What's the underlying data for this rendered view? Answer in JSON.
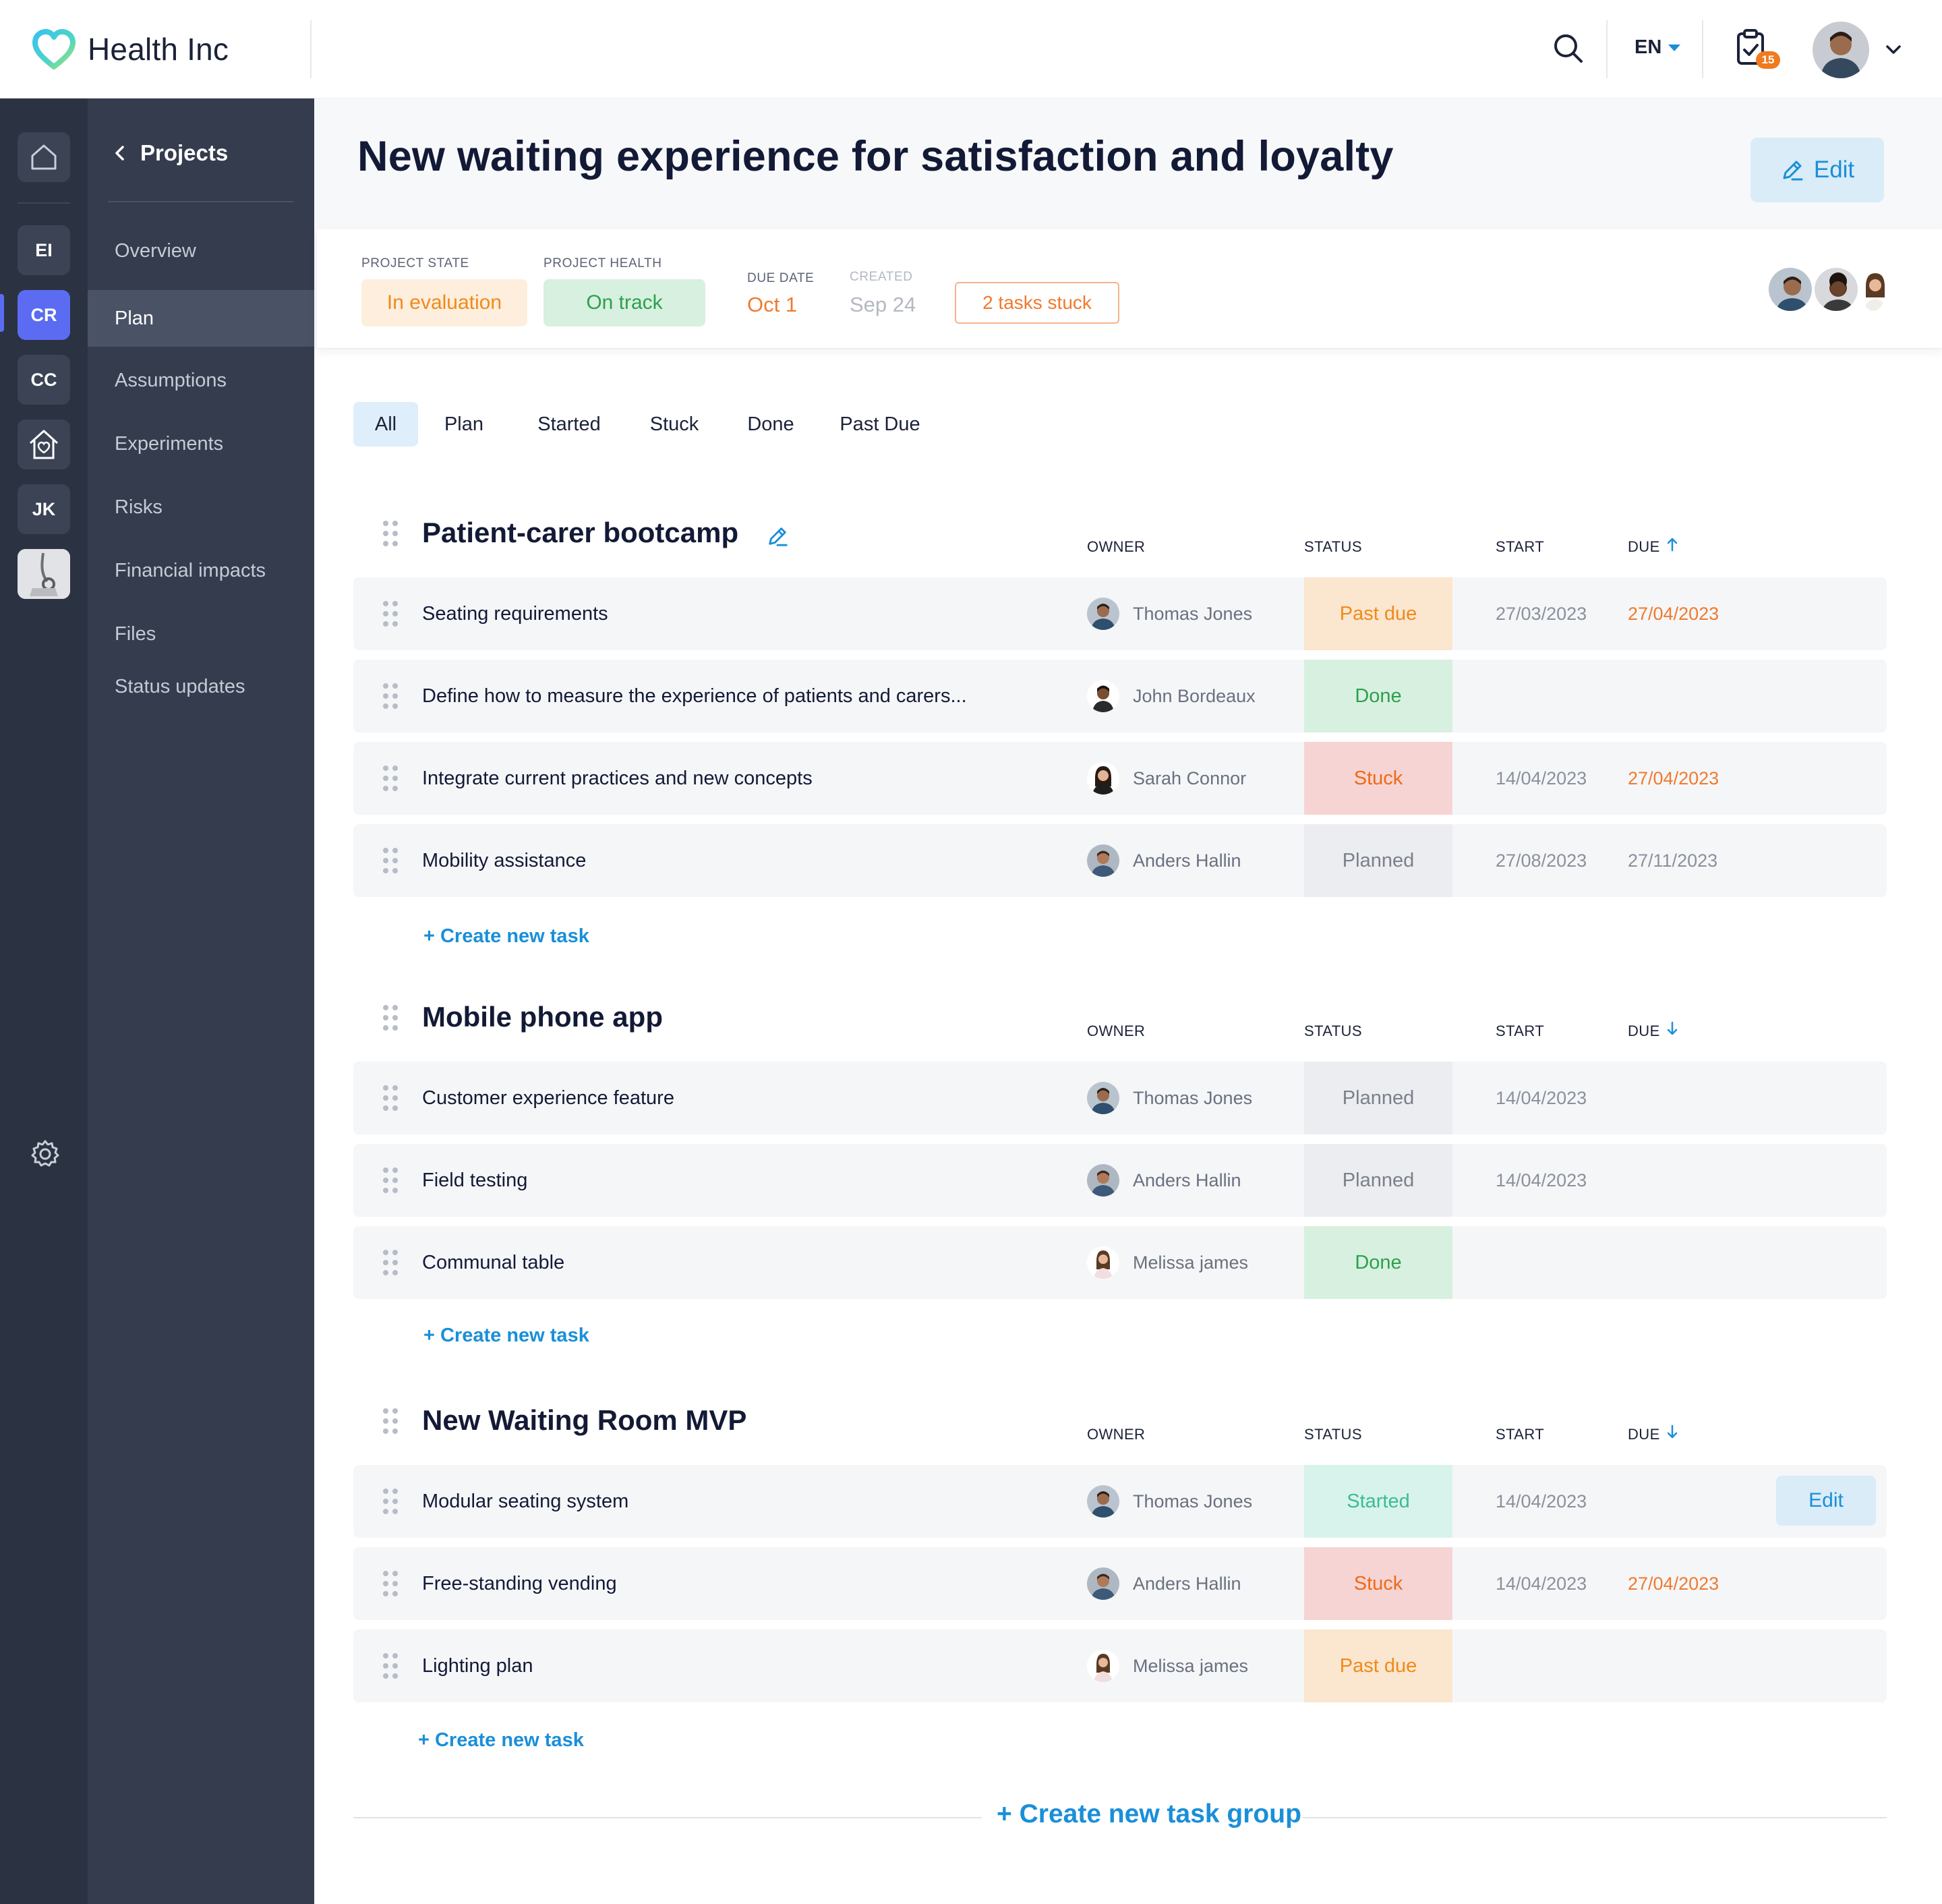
{
  "app": {
    "name": "Health Inc"
  },
  "topbar": {
    "language": "EN",
    "tasks_badge": "15"
  },
  "rail": {
    "items": [
      "EI",
      "CR",
      "CC",
      "JK"
    ]
  },
  "nav": {
    "back_label": "Projects",
    "items": [
      "Overview",
      "Plan",
      "Assumptions",
      "Experiments",
      "Risks",
      "Financial impacts",
      "Files",
      "Status updates"
    ],
    "active": "Plan"
  },
  "project": {
    "title": "New waiting experience for satisfaction and loyalty",
    "edit_label": "Edit",
    "state_label": "PROJECT STATE",
    "state_value": "In evaluation",
    "health_label": "PROJECT HEALTH",
    "health_value": "On track",
    "due_label": "DUE DATE",
    "due_value": "Oct 1",
    "created_label": "CREATED",
    "created_value": "Sep 24",
    "stuck_badge": "2 tasks stuck"
  },
  "filters": {
    "tabs": [
      "All",
      "Plan",
      "Started",
      "Stuck",
      "Done",
      "Past Due"
    ],
    "active": "All"
  },
  "columns": {
    "owner": "OWNER",
    "status": "STATUS",
    "start": "START",
    "due": "DUE"
  },
  "groups": [
    {
      "title": "Patient-carer bootcamp",
      "due_sort": "ascending",
      "tasks": [
        {
          "name": "Seating requirements",
          "owner": "Thomas Jones",
          "status": "Past due",
          "start": "27/03/2023",
          "due": "27/04/2023"
        },
        {
          "name": "Define how to measure the experience of patients and carers...",
          "owner": "John Bordeaux",
          "status": "Done",
          "start": "",
          "due": ""
        },
        {
          "name": "Integrate current practices and new concepts",
          "owner": "Sarah Connor",
          "status": "Stuck",
          "start": "14/04/2023",
          "due": "27/04/2023"
        },
        {
          "name": "Mobility assistance",
          "owner": "Anders Hallin",
          "status": "Planned",
          "start": "27/08/2023",
          "due": "27/11/2023"
        }
      ],
      "create_label": "+ Create new task"
    },
    {
      "title": "Mobile phone app",
      "due_sort": "descending",
      "tasks": [
        {
          "name": "Customer experience feature",
          "owner": "Thomas Jones",
          "status": "Planned",
          "start": "14/04/2023",
          "due": ""
        },
        {
          "name": "Field testing",
          "owner": "Anders Hallin",
          "status": "Planned",
          "start": "14/04/2023",
          "due": ""
        },
        {
          "name": "Communal table",
          "owner": "Melissa james",
          "status": "Done",
          "start": "",
          "due": ""
        }
      ],
      "create_label": "+ Create new task"
    },
    {
      "title": "New Waiting Room MVP",
      "due_sort": "descending",
      "tasks": [
        {
          "name": "Modular seating system",
          "owner": "Thomas Jones",
          "status": "Started",
          "start": "14/04/2023",
          "due": "",
          "action": "Edit"
        },
        {
          "name": "Free-standing vending",
          "owner": "Anders Hallin",
          "status": "Stuck",
          "start": "14/04/2023",
          "due": "27/04/2023"
        },
        {
          "name": "Lighting plan",
          "owner": "Melissa james",
          "status": "Past due",
          "start": "",
          "due": ""
        }
      ],
      "create_label": "+ Create new task"
    }
  ],
  "create_group_label": "+ Create new task group",
  "colors": {
    "accent": "#1a8fd8",
    "rail_active": "#5b6cf2",
    "sidebar_bg": "#2b3242",
    "nav_bg": "#353c4d",
    "overdue": "#f07a2e",
    "done": "#2da04e"
  },
  "icons": [
    "heart-logo-icon",
    "search-icon",
    "caret-down-icon",
    "clipboard-check-icon",
    "chevron-down-icon",
    "home-icon",
    "gear-icon",
    "chevron-left-icon",
    "pencil-icon",
    "drag-handle-icon",
    "arrow-up-icon",
    "arrow-down-icon"
  ]
}
